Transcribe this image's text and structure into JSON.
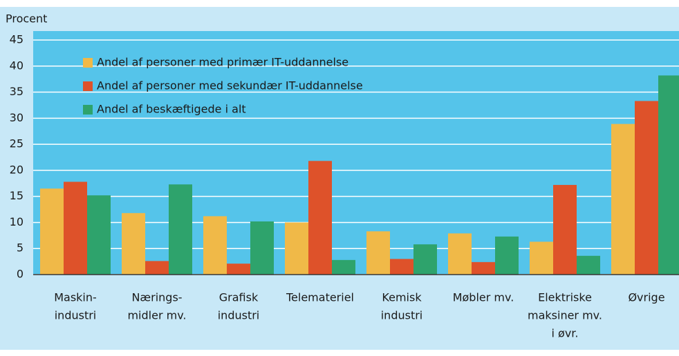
{
  "chart_data": {
    "type": "bar",
    "y_label": "Procent",
    "categories": [
      [
        "Maskin-",
        "industri"
      ],
      [
        "Nærings-",
        "midler mv."
      ],
      [
        "Grafisk",
        "industri"
      ],
      [
        "Telemateriel"
      ],
      [
        "Kemisk",
        "industri"
      ],
      [
        "Møbler mv."
      ],
      [
        "Elektriske",
        "maksiner mv.",
        "i øvr."
      ],
      [
        "Øvrige"
      ]
    ],
    "series": [
      {
        "name": "Andel af personer med primær IT-uddannelse",
        "color": "#f0b948",
        "values": [
          16.5,
          11.8,
          11.2,
          10.0,
          8.3,
          7.9,
          6.3,
          28.9
        ]
      },
      {
        "name": "Andel af personer med sekundær IT-uddannelse",
        "color": "#de522a",
        "values": [
          17.8,
          2.6,
          2.1,
          21.8,
          3.0,
          2.4,
          17.2,
          33.3
        ]
      },
      {
        "name": "Andel af beskæftigede i alt",
        "color": "#2ea36c",
        "values": [
          15.2,
          17.3,
          10.2,
          2.8,
          5.8,
          7.3,
          3.6,
          38.2
        ]
      }
    ],
    "ylim": [
      0,
      45
    ],
    "yticks": [
      0,
      5,
      10,
      15,
      20,
      25,
      30,
      35,
      40,
      45
    ],
    "grid": true,
    "legend": "upper left"
  }
}
